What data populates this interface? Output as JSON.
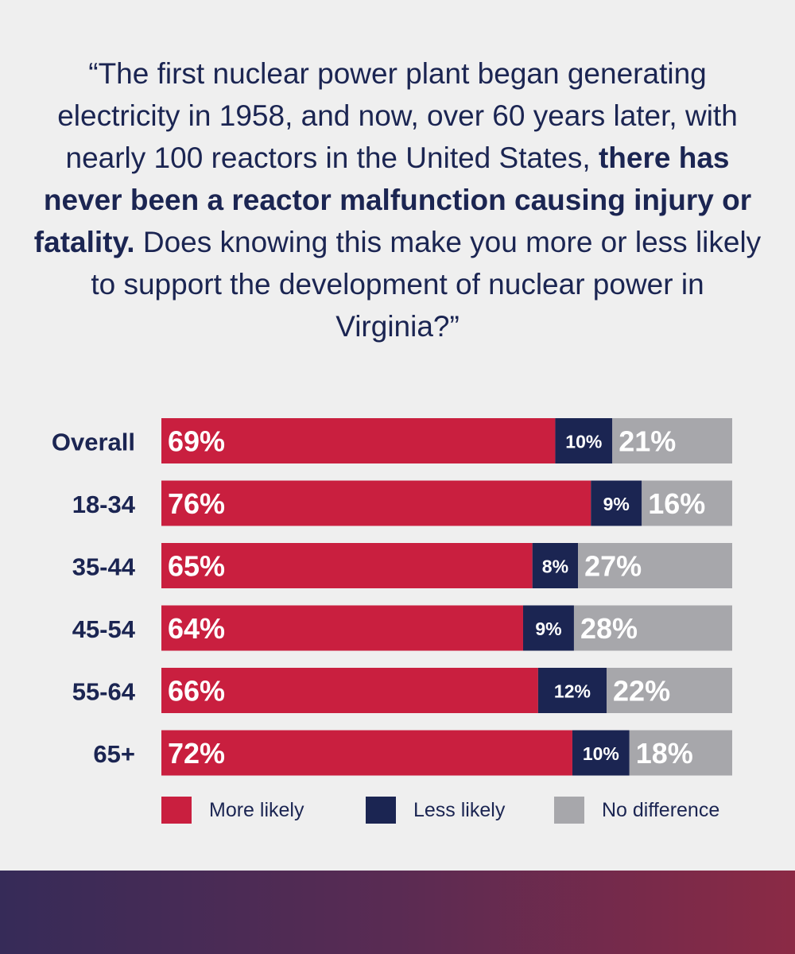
{
  "question": {
    "part1": "“The first nuclear power plant began generating electricity in 1958, and now, over 60 years later, with nearly 100 reactors in the United States, ",
    "bold": "there has never been a reactor malfunction causing injury or fatality.",
    "part2": " Does knowing this make you more or less likely to support the development of nuclear power in Virginia?”"
  },
  "chart_data": {
    "type": "bar",
    "orientation": "horizontal",
    "stacked": true,
    "categories": [
      "Overall",
      "18-34",
      "35-44",
      "45-54",
      "55-64",
      "65+"
    ],
    "series": [
      {
        "name": "More likely",
        "color": "#c91f3f",
        "values": [
          69,
          76,
          65,
          64,
          66,
          72
        ],
        "labels": [
          "69%",
          "76%",
          "65%",
          "64%",
          "66%",
          "72%"
        ]
      },
      {
        "name": "Less likely",
        "color": "#1b2552",
        "values": [
          10,
          9,
          8,
          9,
          12,
          10
        ],
        "labels": [
          "10%",
          "9%",
          "8%",
          "9%",
          "12%",
          "10%"
        ]
      },
      {
        "name": "No difference",
        "color": "#a7a7ab",
        "values": [
          21,
          16,
          27,
          28,
          22,
          18
        ],
        "labels": [
          "21%",
          "16%",
          "27%",
          "28%",
          "22%",
          "18%"
        ]
      }
    ],
    "xlim": [
      0,
      100
    ],
    "grid": false,
    "legend": "bottom"
  }
}
